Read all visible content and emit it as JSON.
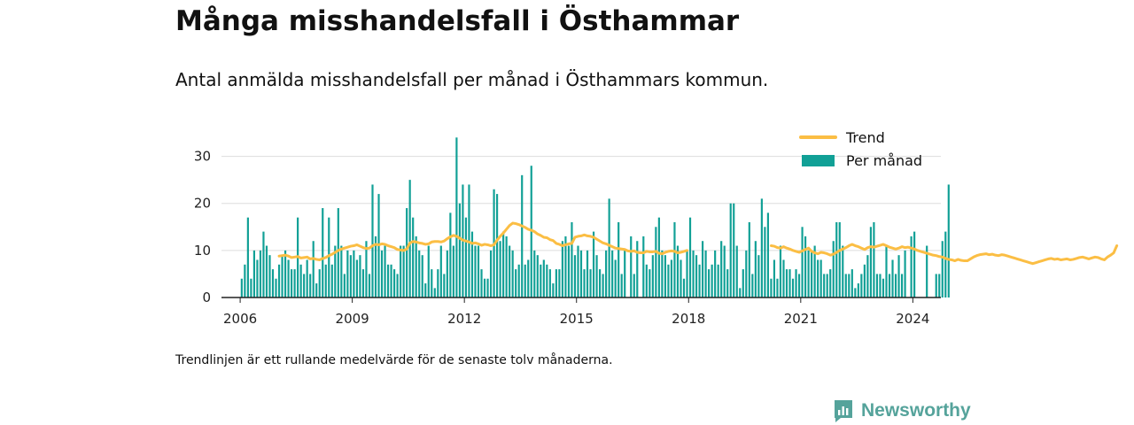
{
  "header": {
    "title": "Många misshandelsfall i Östhammar",
    "subtitle": "Antal anmälda misshandelsfall per månad i Östhammars kommun."
  },
  "footnote": "Trendlinjen är ett rullande medelvärde för de senaste tolv månaderna.",
  "brand": {
    "name": "Newsworthy",
    "icon": "newsworthy-logo-icon",
    "color": "#55a39b"
  },
  "chart_data": {
    "type": "bar",
    "start": "2006-01",
    "ylim": [
      0,
      35
    ],
    "yticks": [
      0,
      10,
      20,
      30
    ],
    "xlim": [
      "2005-07",
      "2024-10"
    ],
    "xticks": [
      "2006",
      "2009",
      "2012",
      "2015",
      "2018",
      "2021",
      "2024"
    ],
    "grid": true,
    "legend_position": "top-right",
    "colors": {
      "bars": "#11a096",
      "trend": "#fbbe44",
      "grid": "#dddddd",
      "axis": "#222222"
    },
    "series": [
      {
        "name": "Per månad",
        "kind": "bar",
        "values": [
          4,
          7,
          17,
          4,
          10,
          8,
          10,
          14,
          11,
          9,
          6,
          4,
          7,
          9,
          10,
          8,
          6,
          6,
          17,
          7,
          5,
          8,
          5,
          12,
          3,
          6,
          19,
          7,
          17,
          7,
          11,
          19,
          11,
          5,
          10,
          9,
          10,
          8,
          9,
          6,
          12,
          5,
          24,
          13,
          22,
          10,
          11,
          7,
          7,
          6,
          5,
          11,
          11,
          19,
          25,
          17,
          13,
          10,
          9,
          3,
          11,
          6,
          2,
          6,
          11,
          5,
          10,
          18,
          11,
          34,
          20,
          24,
          17,
          24,
          14,
          11,
          11,
          6,
          4,
          4,
          10,
          23,
          22,
          12,
          14,
          13,
          11,
          10,
          6,
          7,
          26,
          7,
          8,
          28,
          10,
          9,
          7,
          8,
          7,
          6,
          3,
          6,
          6,
          12,
          13,
          11,
          16,
          9,
          11,
          10,
          6,
          10,
          6,
          14,
          9,
          6,
          5,
          10,
          21,
          10,
          8,
          16,
          5,
          10,
          0,
          13,
          5,
          12,
          0,
          13,
          7,
          6,
          9,
          15,
          17,
          10,
          9,
          7,
          8,
          16,
          11,
          8,
          4,
          10,
          17,
          10,
          9,
          7,
          12,
          10,
          6,
          7,
          10,
          7,
          12,
          11,
          6,
          20,
          20,
          11,
          2,
          6,
          10,
          16,
          5,
          12,
          9,
          21,
          15,
          18,
          4,
          8,
          4,
          11,
          8,
          6,
          6,
          4,
          6,
          5,
          15,
          13,
          10,
          10,
          11,
          8,
          8,
          5,
          5,
          6,
          12,
          16,
          16,
          11,
          5,
          5,
          6,
          2,
          3,
          5,
          7,
          9,
          15,
          16,
          5,
          5,
          4,
          11,
          5,
          8,
          5,
          9,
          5,
          10,
          0,
          13,
          14,
          0,
          0,
          0,
          11,
          0,
          0,
          5,
          5,
          12,
          14,
          24
        ]
      },
      {
        "name": "Trend",
        "kind": "line",
        "values": [
          null,
          null,
          null,
          null,
          null,
          null,
          null,
          null,
          null,
          null,
          null,
          null,
          8.8,
          8.9,
          9.0,
          8.8,
          8.5,
          8.6,
          8.7,
          8.4,
          8.5,
          8.6,
          8.2,
          8.3,
          8.1,
          8.0,
          8.3,
          8.5,
          8.9,
          9.2,
          9.6,
          10.0,
          10.3,
          10.5,
          10.7,
          10.9,
          11.0,
          11.2,
          10.9,
          10.6,
          10.4,
          10.5,
          11.0,
          11.3,
          11.2,
          11.4,
          11.3,
          11.0,
          10.8,
          10.6,
          10.2,
          10.1,
          10.0,
          10.3,
          11.6,
          11.9,
          11.8,
          11.6,
          11.5,
          11.3,
          11.4,
          11.8,
          11.9,
          11.9,
          11.8,
          12.0,
          12.5,
          12.9,
          13.2,
          13.0,
          12.6,
          12.2,
          12.0,
          11.8,
          11.5,
          11.6,
          11.4,
          11.1,
          11.3,
          11.2,
          11.0,
          11.2,
          12.2,
          13.0,
          13.7,
          14.5,
          15.3,
          15.8,
          15.7,
          15.5,
          15.2,
          14.9,
          14.5,
          14.3,
          14.0,
          13.5,
          13.2,
          12.8,
          12.7,
          12.3,
          12.1,
          11.5,
          11.3,
          11.0,
          11.2,
          11.4,
          11.5,
          12.8,
          13.0,
          13.1,
          13.3,
          13.1,
          13.0,
          12.8,
          12.4,
          12.0,
          11.6,
          11.4,
          11.1,
          10.8,
          10.5,
          10.4,
          10.3,
          10.2,
          9.9,
          9.8,
          9.9,
          9.6,
          9.5,
          9.5,
          9.8,
          9.7,
          9.7,
          9.8,
          9.4,
          9.3,
          9.6,
          9.8,
          9.9,
          9.8,
          9.5,
          9.6,
          9.8,
          10.0,
          null,
          null,
          null,
          null,
          null,
          null,
          null,
          null,
          null,
          null,
          null,
          null,
          null,
          null,
          null,
          null,
          null,
          null,
          null,
          null,
          null,
          null,
          null,
          null,
          null,
          null,
          11.0,
          10.9,
          10.6,
          10.5,
          10.8,
          10.5,
          10.3,
          10.0,
          9.8,
          9.6,
          9.9,
          10.2,
          10.5,
          9.8,
          9.5,
          9.3,
          9.6,
          9.5,
          9.3,
          9.0,
          9.2,
          9.6,
          10.0,
          10.3,
          10.6,
          11.0,
          11.3,
          11.0,
          10.8,
          10.5,
          10.2,
          10.6,
          10.8,
          10.7,
          10.9,
          11.1,
          11.3,
          11.0,
          10.7,
          10.5,
          10.3,
          10.5,
          10.8,
          10.6,
          10.7,
          10.5,
          10.3,
          10.0,
          9.8,
          9.6,
          9.4,
          9.2,
          9.0,
          8.9,
          8.7,
          8.6,
          8.3,
          8.1,
          8.0,
          7.8,
          8.1,
          7.9,
          7.8,
          7.8,
          8.2,
          8.6,
          8.9,
          9.1,
          9.2,
          9.3,
          9.1,
          9.2,
          9.0,
          8.9,
          9.1,
          9.0,
          8.8,
          8.6,
          8.4,
          8.2,
          8.0,
          7.8,
          7.6,
          7.4,
          7.2,
          7.4,
          7.6,
          7.8,
          8.0,
          8.2,
          8.3,
          8.1,
          8.2,
          8.0,
          8.1,
          8.2,
          8.0,
          8.1,
          8.3,
          8.5,
          8.6,
          8.4,
          8.2,
          8.4,
          8.6,
          8.5,
          8.2,
          8.0,
          8.6,
          9.0,
          9.5,
          11.0
        ]
      }
    ]
  }
}
